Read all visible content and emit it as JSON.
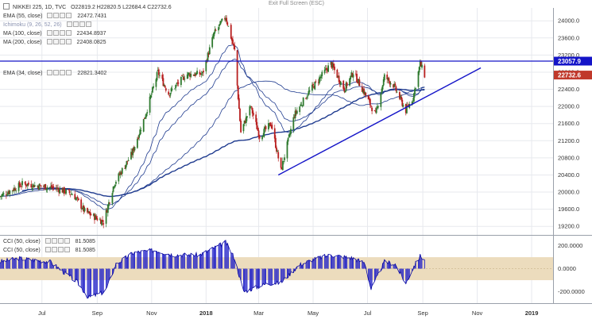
{
  "toolbar": {
    "exit_fullscreen_label": "Exit Full Screen (ESC)"
  },
  "header": {
    "symbol": "NIKKEI 225, 1D, TVC",
    "open": "O22819.2",
    "high": "H22820.5",
    "low": "L22684.4",
    "close": "C22732.6"
  },
  "indicators": [
    {
      "label": "EMA (55, close)",
      "value": "22472.7431",
      "color": "#1f3b8f"
    },
    {
      "label": "Ichimoku (9, 26, 52, 26)",
      "value": "",
      "color": "#7f8fbf"
    },
    {
      "label": "MA (100, close)",
      "value": "22434.8937",
      "color": "#1f3b8f"
    },
    {
      "label": "MA (200, close)",
      "value": "22408.0825",
      "color": "#1f3b8f"
    },
    {
      "label": "EMA (34, close)",
      "value": "22821.3402",
      "color": "#1f3b8f"
    }
  ],
  "cci_legend": [
    {
      "label": "CCI (50, close)",
      "value": "81.5085"
    },
    {
      "label": "CCI (50, close)",
      "value": "81.5085"
    }
  ],
  "price_axis": {
    "ticks": [
      "24000.0",
      "23600.0",
      "23200.0",
      "22800.0",
      "22400.0",
      "22000.0",
      "21600.0",
      "21200.0",
      "20800.0",
      "20400.0",
      "20000.0",
      "19600.0",
      "19200.0"
    ],
    "resistance_label": "23057.9",
    "last_price_label": "22732.6"
  },
  "cci_axis": {
    "ticks": [
      "200.0000",
      "0.0000",
      "-200.0000"
    ]
  },
  "time_axis": {
    "ticks": [
      "Jul",
      "Sep",
      "Nov",
      "2018",
      "Mar",
      "May",
      "Jul",
      "Sep",
      "Nov",
      "2019"
    ]
  },
  "colors": {
    "background": "#ffffff",
    "grid": "#e7e9ee",
    "candle_up": "#2f7a2f",
    "candle_down": "#b81f1f",
    "trendline": "#1414c8",
    "moving_averages": "#1f3b8f",
    "cci_fill": "#1e1ec8",
    "cci_band": "#ecdcbd",
    "last_price_badge": "#c0392b",
    "resistance_badge": "#1414c8"
  },
  "chart_data": [
    {
      "type": "candlestick",
      "title": "NIKKEI 225, 1D, TVC",
      "x_range": [
        "2017-05-15",
        "2019-01-25"
      ],
      "ylim": [
        19000,
        24300
      ],
      "grid": true,
      "price_path": [
        [
          "2017-05-15",
          19900
        ],
        [
          "2017-06-10",
          20200
        ],
        [
          "2017-06-25",
          20150
        ],
        [
          "2017-07-15",
          20100
        ],
        [
          "2017-08-05",
          19950
        ],
        [
          "2017-08-18",
          19550
        ],
        [
          "2017-09-08",
          19300
        ],
        [
          "2017-09-20",
          20200
        ],
        [
          "2017-10-10",
          20900
        ],
        [
          "2017-10-25",
          21800
        ],
        [
          "2017-11-08",
          22800
        ],
        [
          "2017-11-20",
          22300
        ],
        [
          "2017-12-10",
          22750
        ],
        [
          "2017-12-28",
          22760
        ],
        [
          "2018-01-10",
          23700
        ],
        [
          "2018-01-23",
          24100
        ],
        [
          "2018-02-02",
          23300
        ],
        [
          "2018-02-09",
          21400
        ],
        [
          "2018-02-20",
          22000
        ],
        [
          "2018-03-02",
          21300
        ],
        [
          "2018-03-15",
          21600
        ],
        [
          "2018-03-26",
          20500
        ],
        [
          "2018-04-10",
          21800
        ],
        [
          "2018-04-25",
          22300
        ],
        [
          "2018-05-21",
          23000
        ],
        [
          "2018-06-05",
          22400
        ],
        [
          "2018-06-15",
          22800
        ],
        [
          "2018-06-28",
          22300
        ],
        [
          "2018-07-10",
          21800
        ],
        [
          "2018-07-20",
          22700
        ],
        [
          "2018-07-30",
          22500
        ],
        [
          "2018-08-13",
          21900
        ],
        [
          "2018-08-21",
          22200
        ],
        [
          "2018-08-29",
          23000
        ],
        [
          "2018-09-03",
          22732.6
        ]
      ],
      "last": {
        "open": 22819.2,
        "high": 22820.5,
        "low": 22684.4,
        "close": 22732.6
      },
      "overlays": [
        {
          "name": "EMA (55, close)",
          "last": 22472.7431
        },
        {
          "name": "MA (100, close)",
          "last": 22434.8937
        },
        {
          "name": "MA (200, close)",
          "last": 22408.0825
        },
        {
          "name": "EMA (34, close)",
          "last": 22821.3402
        }
      ],
      "horizontal_line": 23057.9,
      "trendline": [
        [
          "2018-03-23",
          20400
        ],
        [
          "2018-11-05",
          22900
        ]
      ]
    },
    {
      "type": "area",
      "title": "CCI (50, close)",
      "ylim": [
        -300,
        280
      ],
      "band": [
        -100,
        100
      ],
      "last": 81.5085,
      "path": [
        [
          "2017-05-15",
          60
        ],
        [
          "2017-06-05",
          90
        ],
        [
          "2017-07-10",
          60
        ],
        [
          "2017-08-10",
          -120
        ],
        [
          "2017-08-22",
          -250
        ],
        [
          "2017-09-10",
          -200
        ],
        [
          "2017-09-22",
          40
        ],
        [
          "2017-10-12",
          140
        ],
        [
          "2017-11-05",
          160
        ],
        [
          "2017-11-25",
          120
        ],
        [
          "2017-12-25",
          120
        ],
        [
          "2018-01-10",
          180
        ],
        [
          "2018-01-23",
          230
        ],
        [
          "2018-02-02",
          90
        ],
        [
          "2018-02-12",
          -200
        ],
        [
          "2018-03-10",
          -130
        ],
        [
          "2018-03-26",
          -120
        ],
        [
          "2018-04-15",
          30
        ],
        [
          "2018-05-01",
          80
        ],
        [
          "2018-05-21",
          120
        ],
        [
          "2018-06-15",
          90
        ],
        [
          "2018-06-28",
          50
        ],
        [
          "2018-07-05",
          -180
        ],
        [
          "2018-07-20",
          60
        ],
        [
          "2018-08-01",
          40
        ],
        [
          "2018-08-13",
          -130
        ],
        [
          "2018-08-22",
          20
        ],
        [
          "2018-08-29",
          110
        ],
        [
          "2018-09-03",
          81.5
        ]
      ]
    }
  ]
}
